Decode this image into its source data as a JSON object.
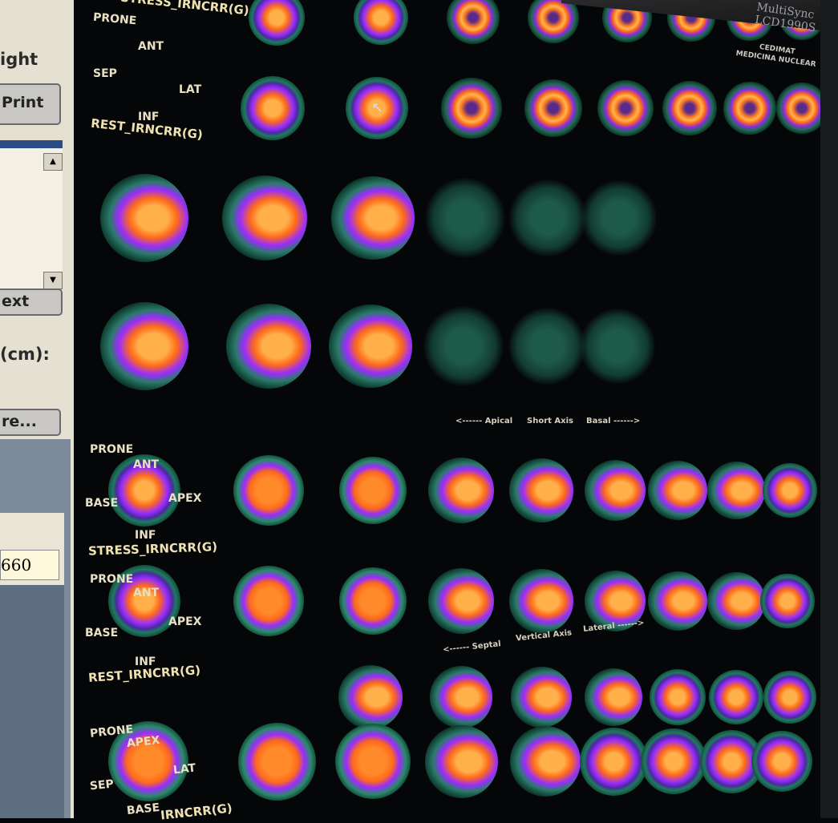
{
  "left_panel": {
    "text_light": "ight",
    "print_button": "Print",
    "next_button": "ext",
    "size_label": "(cm):",
    "more_button": "re...",
    "value_field": "660"
  },
  "monitor": {
    "brand": "MultiSync LCD1990S",
    "clinic_line1": "CEDIMAT",
    "clinic_line2": "MEDICINA NUCLEAR"
  },
  "short_axis": {
    "stress_label": "STRESS_IRNCRR(G)",
    "prone": "PRONE",
    "ant": "ANT",
    "sep": "SEP",
    "lat": "LAT",
    "inf": "INF",
    "rest_label": "REST_IRNCRR(G)",
    "axis_left": "<------ Apical",
    "axis_mid": "Short Axis",
    "axis_right": "Basal ------>"
  },
  "vertical_long_axis": {
    "prone1": "PRONE",
    "ant1": "ANT",
    "base1": "BASE",
    "apex1": "APEX",
    "inf1": "INF",
    "stress_label": "STRESS_IRNCRR(G)",
    "prone2": "PRONE",
    "ant2": "ANT",
    "base2": "BASE",
    "apex2": "APEX",
    "inf2": "INF",
    "rest_label": "REST_IRNCRR(G)",
    "axis_left": "<------ Septal",
    "axis_mid": "Vertical Axis",
    "axis_right": "Lateral ------>"
  },
  "horizontal_long_axis": {
    "prone": "PRONE",
    "apex": "APEX",
    "sep": "SEP",
    "lat": "LAT",
    "base": "BASE",
    "label_partial": "IRNCRR(G)"
  },
  "cursor": "arrow-cursor-icon"
}
